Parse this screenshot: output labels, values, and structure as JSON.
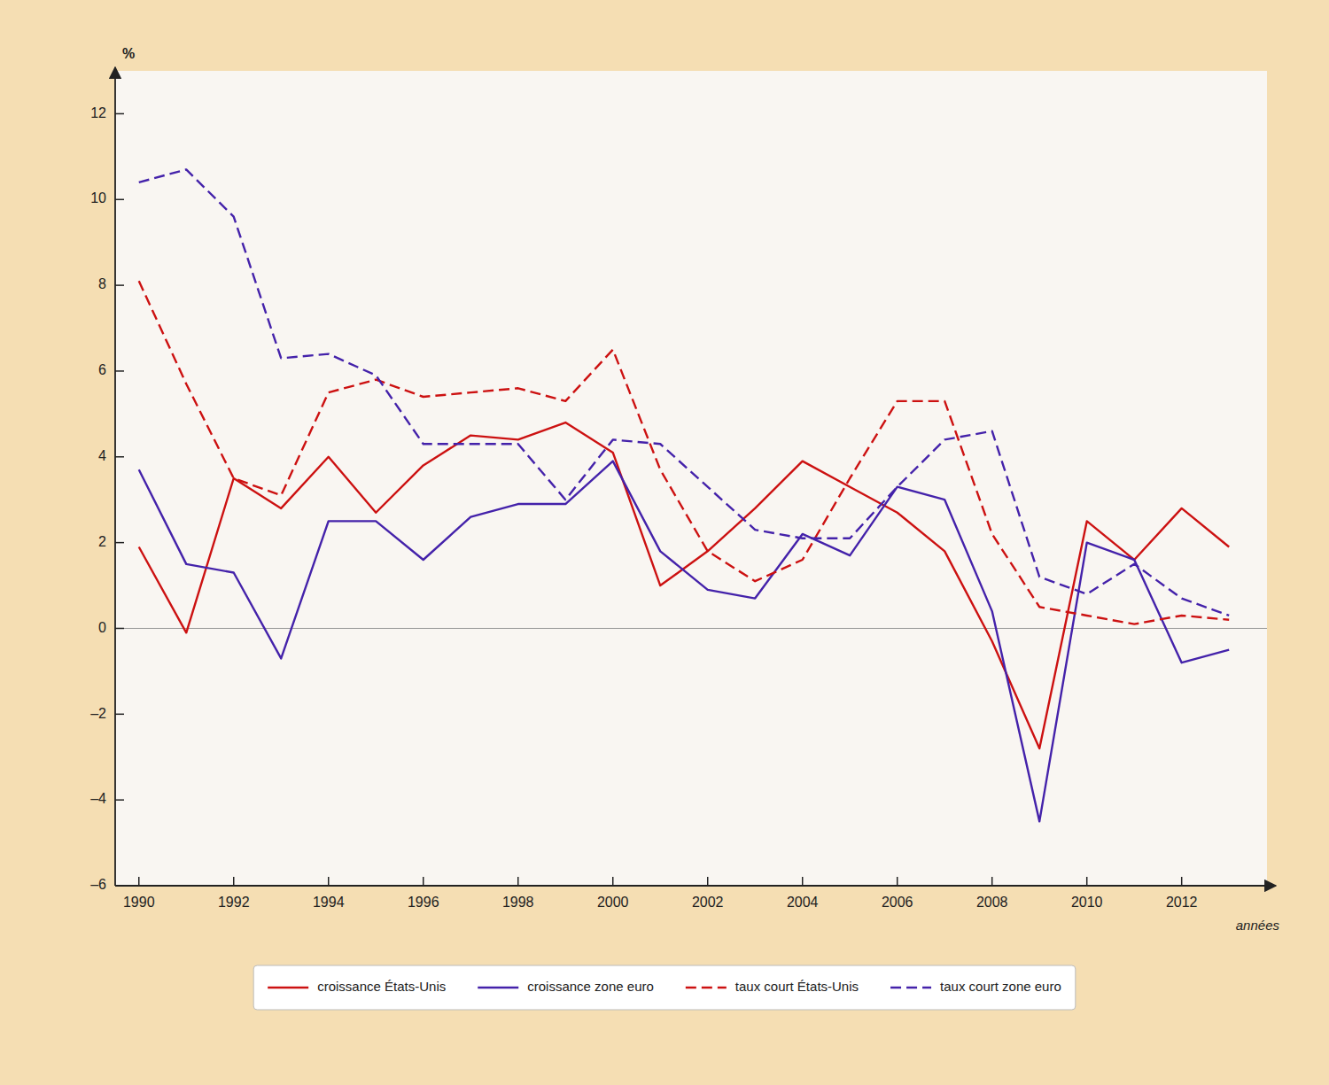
{
  "chart_data": {
    "type": "line",
    "x": [
      1990,
      1991,
      1992,
      1993,
      1994,
      1995,
      1996,
      1997,
      1998,
      1999,
      2000,
      2001,
      2002,
      2003,
      2004,
      2005,
      2006,
      2007,
      2008,
      2009,
      2010,
      2011,
      2012,
      2013
    ],
    "series": [
      {
        "name": "croissance États-Unis",
        "color": "#cc1111",
        "line_style": "solid",
        "values": [
          1.9,
          -0.1,
          3.5,
          2.8,
          4.0,
          2.7,
          3.8,
          4.5,
          4.4,
          4.8,
          4.1,
          1.0,
          1.8,
          2.8,
          3.9,
          3.3,
          2.7,
          1.8,
          -0.3,
          -2.8,
          2.5,
          1.6,
          2.8,
          1.9
        ]
      },
      {
        "name": "croissance zone euro",
        "color": "#4422aa",
        "line_style": "solid",
        "values": [
          3.7,
          1.5,
          1.3,
          -0.7,
          2.5,
          2.5,
          1.6,
          2.6,
          2.9,
          2.9,
          3.9,
          1.8,
          0.9,
          0.7,
          2.2,
          1.7,
          3.3,
          3.0,
          0.4,
          -4.5,
          2.0,
          1.6,
          -0.8,
          -0.5
        ]
      },
      {
        "name": "taux court États-Unis",
        "color": "#cc1111",
        "line_style": "dashed",
        "values": [
          8.1,
          5.7,
          3.5,
          3.1,
          5.5,
          5.8,
          5.4,
          5.5,
          5.6,
          5.3,
          6.5,
          3.7,
          1.8,
          1.1,
          1.6,
          3.5,
          5.3,
          5.3,
          2.2,
          0.5,
          0.3,
          0.1,
          0.3,
          0.2
        ]
      },
      {
        "name": "taux court zone euro",
        "color": "#4422aa",
        "line_style": "dashed",
        "values": [
          10.4,
          10.7,
          9.6,
          6.3,
          6.4,
          5.9,
          4.3,
          4.3,
          4.3,
          3.0,
          4.4,
          4.3,
          3.3,
          2.3,
          2.1,
          2.1,
          3.3,
          4.4,
          4.6,
          1.2,
          0.8,
          1.5,
          0.7,
          0.3
        ]
      }
    ],
    "xlabel": "années",
    "ylabel": "%",
    "xlim": [
      1989.5,
      2013.8
    ],
    "xticks": [
      1990,
      1992,
      1994,
      1996,
      1998,
      2000,
      2002,
      2004,
      2006,
      2008,
      2010,
      2012
    ],
    "ylim": [
      -6,
      13
    ],
    "yticks": [
      {
        "value": -6,
        "label": "–6"
      },
      {
        "value": -4,
        "label": "–4"
      },
      {
        "value": -2,
        "label": "–2"
      },
      0,
      2,
      4,
      6,
      8,
      10,
      12
    ],
    "grid": false,
    "legend": "bottom"
  }
}
